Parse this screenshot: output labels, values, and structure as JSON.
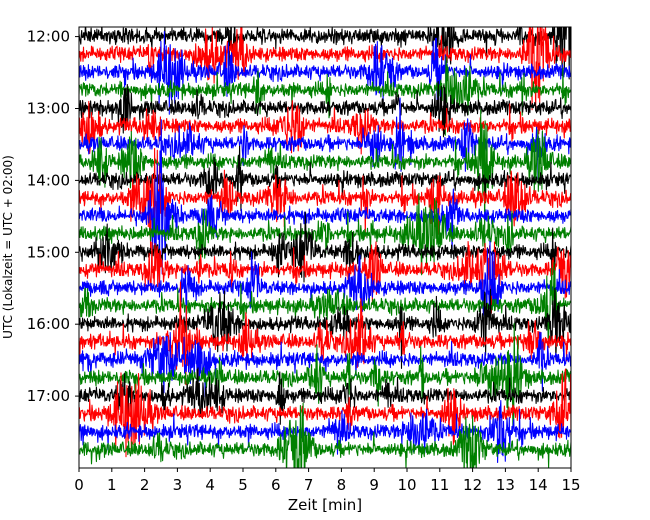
{
  "chart_data": {
    "type": "line",
    "title": "",
    "xlabel": "Zeit  [min]",
    "ylabel": "UTC (Lokalzeit = UTC + 02:00)",
    "xlim": [
      0,
      15
    ],
    "x_ticks": [
      "0",
      "1",
      "2",
      "3",
      "4",
      "5",
      "6",
      "7",
      "8",
      "9",
      "10",
      "11",
      "12",
      "13",
      "14",
      "15"
    ],
    "y_ticks": [
      "12:00",
      "13:00",
      "14:00",
      "15:00",
      "16:00",
      "17:00"
    ],
    "y_tick_minutes": [
      720,
      780,
      840,
      900,
      960,
      1020
    ],
    "time_range_utc": [
      "11:52",
      "18:00"
    ],
    "trace_interval_min": 15,
    "trace_colors_cycle": [
      "#000000",
      "#ff0000",
      "#0000ff",
      "#008000"
    ],
    "trace_start_times_utc": [
      "11:52",
      "12:07",
      "12:22",
      "12:37",
      "12:52",
      "13:07",
      "13:22",
      "13:37",
      "13:52",
      "14:07",
      "14:22",
      "14:37",
      "14:52",
      "15:07",
      "15:22",
      "15:37",
      "15:52",
      "16:07",
      "16:22",
      "16:37",
      "16:52",
      "17:07",
      "17:22",
      "17:37"
    ],
    "grid": false,
    "legend": "none"
  }
}
